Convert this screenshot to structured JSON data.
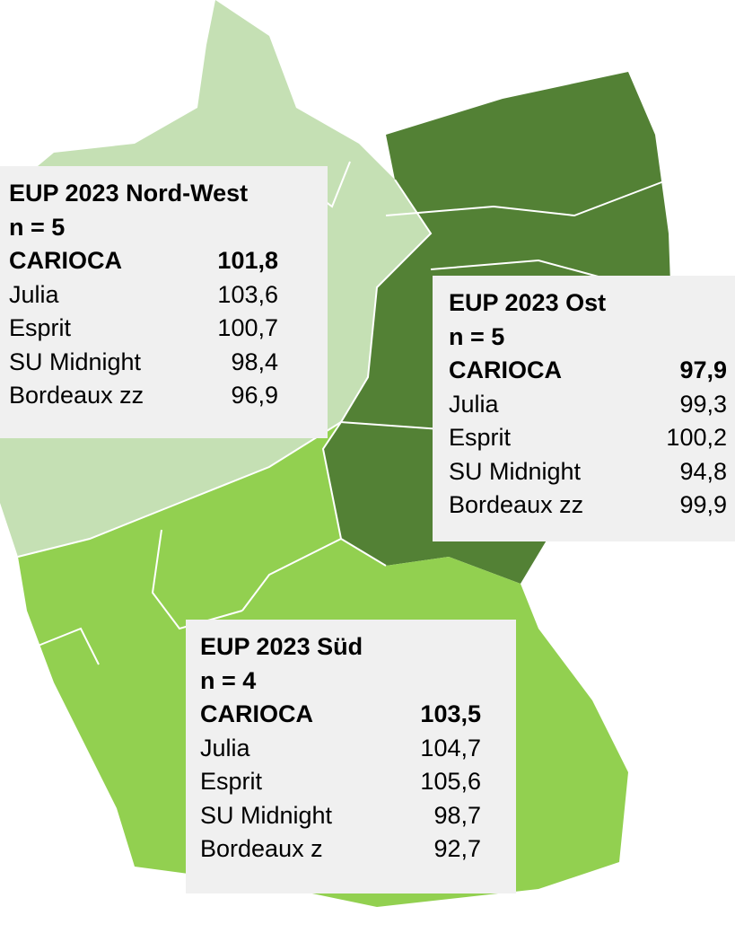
{
  "boxes": [
    {
      "title": "EUP 2023 Nord-West",
      "n": "n = 5",
      "rows": [
        [
          "CARIOCA",
          "101,8"
        ],
        [
          "Julia",
          "103,6"
        ],
        [
          "Esprit",
          "100,7"
        ],
        [
          "SU Midnight",
          "98,4"
        ],
        [
          "Bordeaux zz",
          "96,9"
        ]
      ]
    },
    {
      "title": "EUP 2023 Ost",
      "n": "n = 5",
      "rows": [
        [
          "CARIOCA",
          "97,9"
        ],
        [
          "Julia",
          "99,3"
        ],
        [
          "Esprit",
          "100,2"
        ],
        [
          "SU Midnight",
          "94,8"
        ],
        [
          "Bordeaux zz",
          "99,9"
        ]
      ]
    },
    {
      "title": "EUP 2023 Süd",
      "n": "n = 4",
      "rows": [
        [
          "CARIOCA",
          "103,5"
        ],
        [
          "Julia",
          "104,7"
        ],
        [
          "Esprit",
          "105,6"
        ],
        [
          "SU Midnight",
          "98,7"
        ],
        [
          "Bordeaux z",
          "92,7"
        ]
      ]
    }
  ]
}
